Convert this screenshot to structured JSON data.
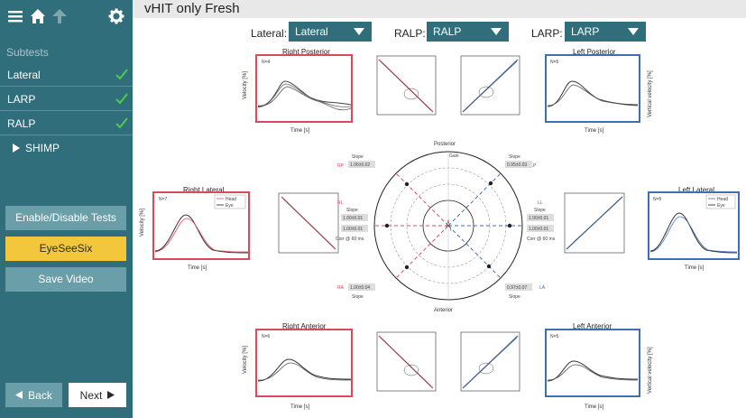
{
  "sidebar": {
    "subtests_label": "Subtests",
    "items": [
      {
        "label": "Lateral",
        "done": true
      },
      {
        "label": "LARP",
        "done": true
      },
      {
        "label": "RALP",
        "done": true
      }
    ],
    "shimp_label": "SHIMP",
    "enable_disable_label": "Enable/Disable Tests",
    "eyeseesix_label": "EyeSeeSix",
    "save_video_label": "Save Video",
    "back_label": "Back",
    "next_label": "Next"
  },
  "header": {
    "title": "vHIT only Fresh"
  },
  "dropdowns": [
    {
      "label": "Lateral:",
      "value": "Lateral"
    },
    {
      "label": "RALP:",
      "value": "RALP"
    },
    {
      "label": "LARP:",
      "value": "LARP"
    }
  ],
  "plots": {
    "right_posterior": {
      "title": "Right Posterior",
      "n": "N=4",
      "xlabel": "Time [s]",
      "ylabel": "Velocity [%]"
    },
    "left_posterior": {
      "title": "Left Posterior",
      "n": "N=5",
      "xlabel": "Time [s]",
      "ylabel": "Vertical velocity [%]"
    },
    "right_lateral": {
      "title": "Right Lateral",
      "n": "N=7",
      "xlabel": "Time [s]",
      "ylabel": "Velocity [%]",
      "legend_head": "Head",
      "legend_eye": "Eye"
    },
    "left_lateral": {
      "title": "Left Lateral",
      "n": "N=5",
      "xlabel": "Time [s]",
      "legend_head": "Head",
      "legend_eye": "Eye"
    },
    "right_anterior": {
      "title": "Right Anterior",
      "n": "N=6",
      "xlabel": "Time [s]",
      "ylabel": "Velocity [%]"
    },
    "left_anterior": {
      "title": "Left Anterior",
      "n": "N=5",
      "xlabel": "Time [s]",
      "ylabel": "Vertical velocity [%]"
    }
  },
  "polar": {
    "posterior_label": "Posterior",
    "anterior_label": "Anterior",
    "gain_label": "Gain",
    "rp": "RP",
    "lp": "LP",
    "rl": "RL",
    "ll": "LL",
    "ra": "RA",
    "la": "LA",
    "slope_label": "Slope",
    "corr_label": "Corr @ 60 ms",
    "rp_value": "1.06±0.02",
    "lp_value": "0.95±0.03",
    "rl_value": "1.00±0.01",
    "ll_value": "1.00±0.01",
    "ra_value": "1.00±0.04",
    "la_value": "0.97±0.07"
  },
  "colors": {
    "sidebar": "#2f6e7a",
    "accent_yellow": "#f3c73b",
    "right": "#e0485a",
    "left": "#3d6fb6"
  }
}
